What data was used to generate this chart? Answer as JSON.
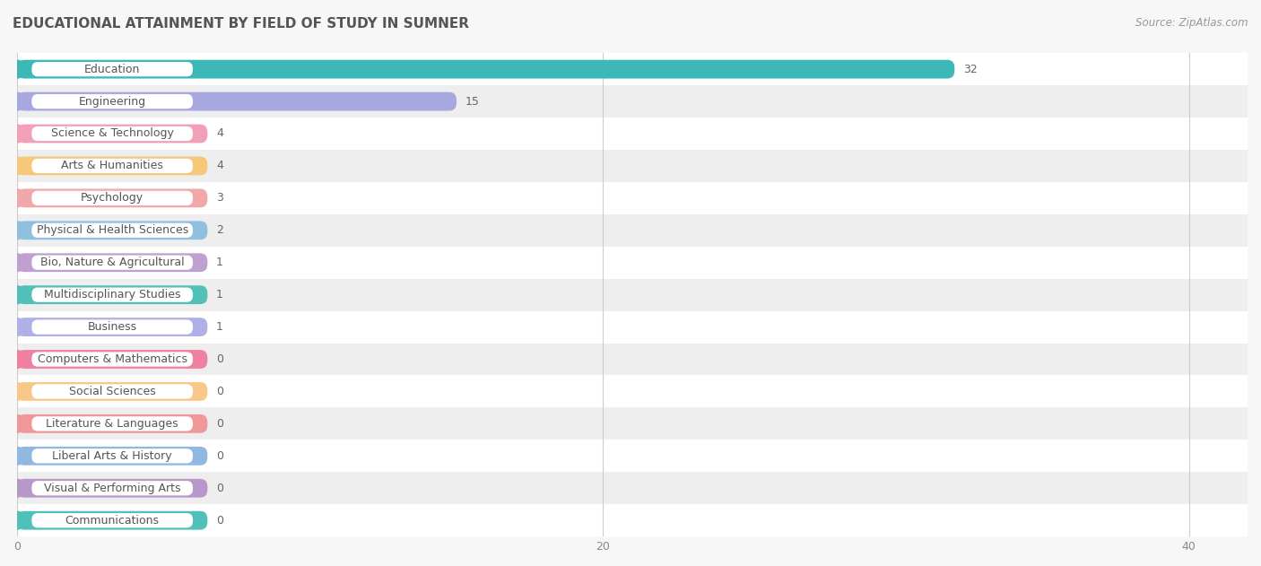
{
  "title": "EDUCATIONAL ATTAINMENT BY FIELD OF STUDY IN SUMNER",
  "source": "Source: ZipAtlas.com",
  "categories": [
    "Education",
    "Engineering",
    "Science & Technology",
    "Arts & Humanities",
    "Psychology",
    "Physical & Health Sciences",
    "Bio, Nature & Agricultural",
    "Multidisciplinary Studies",
    "Business",
    "Computers & Mathematics",
    "Social Sciences",
    "Literature & Languages",
    "Liberal Arts & History",
    "Visual & Performing Arts",
    "Communications"
  ],
  "values": [
    32,
    15,
    4,
    4,
    3,
    2,
    1,
    1,
    1,
    0,
    0,
    0,
    0,
    0,
    0
  ],
  "bar_colors": [
    "#3db8b8",
    "#a8a8e0",
    "#f2a0b8",
    "#f5c87a",
    "#f0a8a8",
    "#90c0e0",
    "#c0a0d0",
    "#50c0b8",
    "#b0b0e8",
    "#f080a0",
    "#f8c888",
    "#f09898",
    "#90b8e0",
    "#b898c8",
    "#50c0b8"
  ],
  "min_bar_width": 6.5,
  "xlim_max": 42,
  "xticks": [
    0,
    20,
    40
  ],
  "bg_color": "#f7f7f7",
  "row_even_color": "#ffffff",
  "row_odd_color": "#eeeeee",
  "title_fontsize": 11,
  "source_fontsize": 8.5,
  "value_label_fontsize": 9,
  "cat_label_fontsize": 9
}
